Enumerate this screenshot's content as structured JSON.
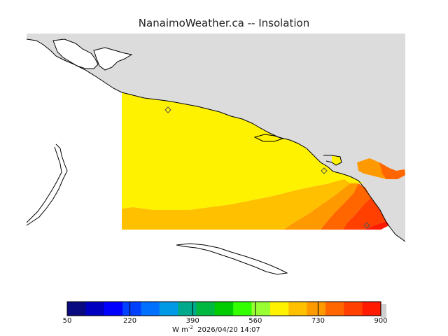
{
  "chart_title": "NanaimoWeather.ca -- Insolation",
  "colors": {
    "land": "#dcdcdc",
    "coast": "#000000",
    "band_yellow": "#fff200",
    "band_gold": "#ffc000",
    "band_amber": "#ff9900",
    "band_orange": "#ff6600",
    "band_redorange": "#ff4000",
    "band_red": "#ff1a00"
  },
  "chart_data": {
    "type": "heatmap",
    "title": "NanaimoWeather.ca -- Insolation",
    "colorbar": {
      "min": 50,
      "max": 900,
      "tick_labels": [
        "50",
        "220",
        "390",
        "560",
        "730",
        "900"
      ],
      "tick_values": [
        50,
        220,
        390,
        560,
        730,
        900
      ],
      "units_label": "W m",
      "units_exponent": "-2",
      "timestamp": "2026/04/20 14:07",
      "bins": [
        {
          "from": 50,
          "to": 100,
          "color": "#0a0a80"
        },
        {
          "from": 100,
          "to": 150,
          "color": "#0000c0"
        },
        {
          "from": 150,
          "to": 200,
          "color": "#0000ff"
        },
        {
          "from": 200,
          "to": 250,
          "color": "#0040ff"
        },
        {
          "from": 250,
          "to": 300,
          "color": "#0070ff"
        },
        {
          "from": 300,
          "to": 350,
          "color": "#0099e6"
        },
        {
          "from": 350,
          "to": 400,
          "color": "#00a88c"
        },
        {
          "from": 400,
          "to": 450,
          "color": "#00b840"
        },
        {
          "from": 450,
          "to": 500,
          "color": "#00cc00"
        },
        {
          "from": 500,
          "to": 550,
          "color": "#33ff00"
        },
        {
          "from": 550,
          "to": 600,
          "color": "#99ff33"
        },
        {
          "from": 600,
          "to": 650,
          "color": "#fff200"
        },
        {
          "from": 650,
          "to": 700,
          "color": "#ffc000"
        },
        {
          "from": 700,
          "to": 750,
          "color": "#ff9900"
        },
        {
          "from": 750,
          "to": 800,
          "color": "#ff6600"
        },
        {
          "from": 800,
          "to": 850,
          "color": "#ff4000"
        },
        {
          "from": 850,
          "to": 900,
          "color": "#ff1a00"
        }
      ]
    },
    "field_bands": [
      {
        "name": "600-650",
        "color": "#fff200"
      },
      {
        "name": "650-700",
        "color": "#ffc000"
      },
      {
        "name": "700-750",
        "color": "#ff9900"
      },
      {
        "name": "750-800",
        "color": "#ff6600"
      },
      {
        "name": "800-850",
        "color": "#ff4000"
      },
      {
        "name": "850-900",
        "color": "#ff1a00"
      }
    ]
  }
}
